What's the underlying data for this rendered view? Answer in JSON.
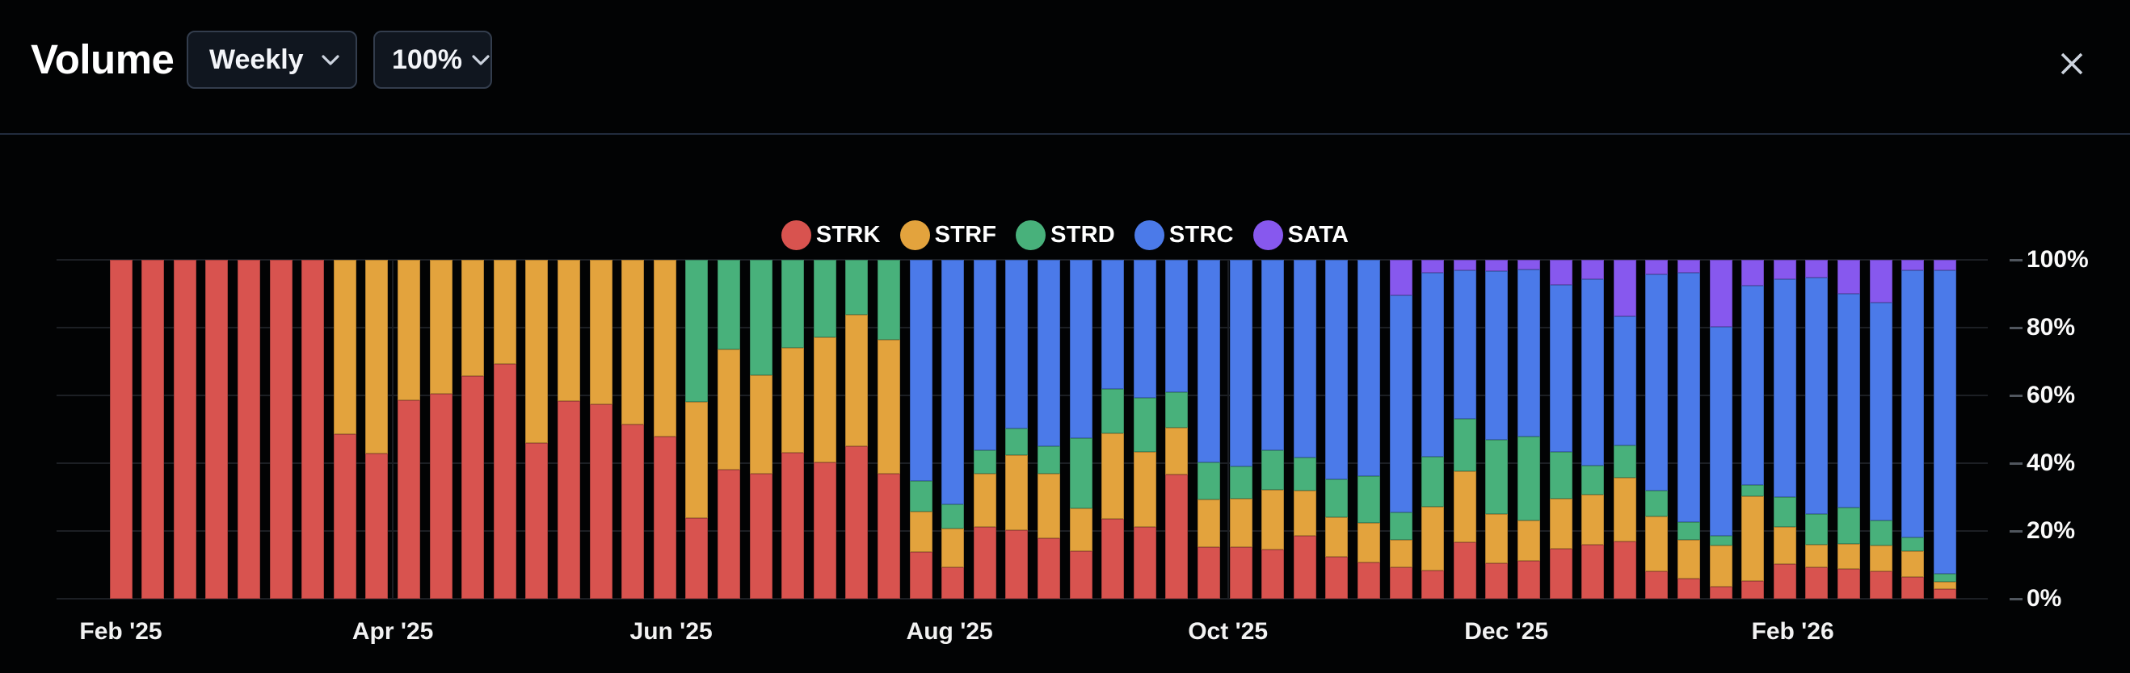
{
  "window": {
    "title": "Volume"
  },
  "controls": {
    "period": {
      "value": "Weekly"
    },
    "scale": {
      "value": "100%"
    }
  },
  "icons": {
    "close": "x-icon",
    "dropdown": "chevron-down-icon"
  },
  "legend": {
    "items": [
      {
        "label": "STRK",
        "color": "#d8534f"
      },
      {
        "label": "STRF",
        "color": "#e3a33d"
      },
      {
        "label": "STRD",
        "color": "#48b17b"
      },
      {
        "label": "STRC",
        "color": "#4b7ae9"
      },
      {
        "label": "SATA",
        "color": "#8758ee"
      }
    ]
  },
  "chart_data": {
    "type": "bar",
    "stacked": true,
    "unit": "percent",
    "title": "Volume",
    "interval": "Weekly",
    "legend_position": "top-center",
    "grid": true,
    "y_axis": {
      "side": "right",
      "min": 0,
      "max": 100,
      "ticks": [
        "0%",
        "20%",
        "40%",
        "60%",
        "80%",
        "100%"
      ]
    },
    "x_axis": {
      "ticks": [
        {
          "label": "Feb '25",
          "week_index": 0
        },
        {
          "label": "Apr '25",
          "week_index": 8.5
        },
        {
          "label": "Jun '25",
          "week_index": 17.2
        },
        {
          "label": "Aug '25",
          "week_index": 25.9
        },
        {
          "label": "Oct '25",
          "week_index": 34.6
        },
        {
          "label": "Dec '25",
          "week_index": 43.3
        },
        {
          "label": "Feb '26",
          "week_index": 52.25
        }
      ]
    },
    "series_order": [
      "STRK",
      "STRF",
      "STRD",
      "STRC",
      "SATA"
    ],
    "series_colors": {
      "STRK": "#d8534f",
      "STRF": "#e3a33d",
      "STRD": "#48b17b",
      "STRC": "#4b7ae9",
      "SATA": "#8758ee"
    },
    "weeks": [
      [
        100,
        0,
        0,
        0,
        0
      ],
      [
        100,
        0,
        0,
        0,
        0
      ],
      [
        100,
        0,
        0,
        0,
        0
      ],
      [
        100,
        0,
        0,
        0,
        0
      ],
      [
        100,
        0,
        0,
        0,
        0
      ],
      [
        100,
        0,
        0,
        0,
        0
      ],
      [
        100,
        0,
        0,
        0,
        0
      ],
      [
        48.6,
        51.4,
        0,
        0,
        0
      ],
      [
        42.9,
        57.1,
        0,
        0,
        0
      ],
      [
        58.6,
        41.4,
        0,
        0,
        0
      ],
      [
        60.5,
        39.5,
        0,
        0,
        0
      ],
      [
        65.6,
        34.4,
        0,
        0,
        0
      ],
      [
        69.3,
        30.7,
        0,
        0,
        0
      ],
      [
        45.9,
        54.1,
        0,
        0,
        0
      ],
      [
        58.4,
        41.6,
        0,
        0,
        0
      ],
      [
        57.5,
        42.5,
        0,
        0,
        0
      ],
      [
        51.4,
        48.6,
        0,
        0,
        0
      ],
      [
        47.8,
        52.2,
        0,
        0,
        0
      ],
      [
        23.8,
        34.3,
        41.9,
        0,
        0
      ],
      [
        38.2,
        35.3,
        26.5,
        0,
        0
      ],
      [
        36.8,
        29.1,
        34.1,
        0,
        0
      ],
      [
        43.2,
        30.8,
        26.0,
        0,
        0
      ],
      [
        40.2,
        36.9,
        22.9,
        0,
        0
      ],
      [
        45.1,
        38.8,
        16.1,
        0,
        0
      ],
      [
        37.0,
        39.4,
        23.6,
        0,
        0
      ],
      [
        13.8,
        11.9,
        9.0,
        65.3,
        0
      ],
      [
        9.4,
        11.3,
        7.1,
        72.2,
        0
      ],
      [
        21.1,
        15.9,
        6.9,
        56.1,
        0
      ],
      [
        20.3,
        22.2,
        7.7,
        49.8,
        0
      ],
      [
        17.9,
        19.0,
        8.1,
        55.0,
        0
      ],
      [
        14.0,
        12.7,
        20.6,
        52.7,
        0
      ],
      [
        23.5,
        25.2,
        13.3,
        38.0,
        0
      ],
      [
        21.3,
        22.1,
        16.0,
        40.6,
        0
      ],
      [
        36.7,
        13.7,
        10.5,
        39.1,
        0
      ],
      [
        15.3,
        13.9,
        11.0,
        59.8,
        0
      ],
      [
        15.3,
        14.3,
        9.4,
        61.0,
        0
      ],
      [
        14.5,
        17.7,
        11.5,
        56.3,
        0
      ],
      [
        18.5,
        13.3,
        9.9,
        58.3,
        0
      ],
      [
        12.4,
        11.7,
        11.1,
        64.8,
        0
      ],
      [
        10.6,
        11.7,
        13.9,
        63.8,
        0
      ],
      [
        9.4,
        7.9,
        8.3,
        64.0,
        10.4
      ],
      [
        8.4,
        18.7,
        14.7,
        54.5,
        3.7
      ],
      [
        16.7,
        21.0,
        15.5,
        43.7,
        3.1
      ],
      [
        10.4,
        14.7,
        21.8,
        49.8,
        3.3
      ],
      [
        11.2,
        11.9,
        24.8,
        49.2,
        2.9
      ],
      [
        14.8,
        14.7,
        13.9,
        49.3,
        7.3
      ],
      [
        16.0,
        14.7,
        8.7,
        55.0,
        5.6
      ],
      [
        16.9,
        18.9,
        9.5,
        38.0,
        16.7
      ],
      [
        8.0,
        16.3,
        7.7,
        63.7,
        4.3
      ],
      [
        6.0,
        11.3,
        5.3,
        73.7,
        3.7
      ],
      [
        3.6,
        12.1,
        2.8,
        61.7,
        19.8
      ],
      [
        5.3,
        24.9,
        3.4,
        58.8,
        7.6
      ],
      [
        10.3,
        10.8,
        8.9,
        64.2,
        5.8
      ],
      [
        9.2,
        6.7,
        9.0,
        69.8,
        5.3
      ],
      [
        8.7,
        7.4,
        10.8,
        63.1,
        10.0
      ],
      [
        8.1,
        7.7,
        7.4,
        64.2,
        12.6
      ],
      [
        6.5,
        7.6,
        4.0,
        78.9,
        3.0
      ],
      [
        2.9,
        2.2,
        2.2,
        89.5,
        3.2
      ]
    ]
  }
}
